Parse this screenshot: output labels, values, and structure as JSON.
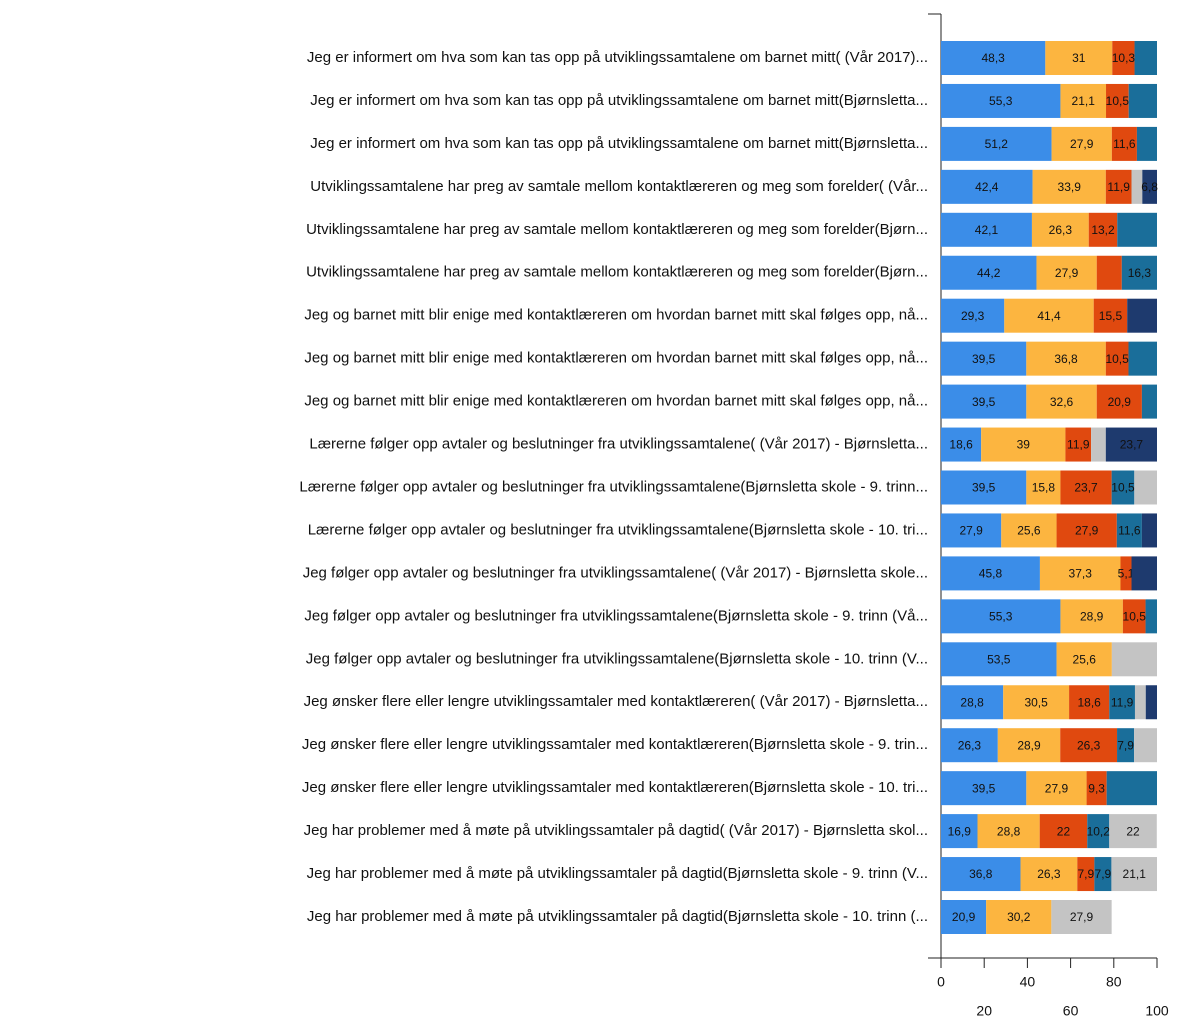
{
  "chart_data": {
    "type": "stacked_barh",
    "categories": [
      "Jeg er informert om hva som kan tas opp på utviklingssamtalene om barnet mitt( (Vår 2017)...",
      "Jeg er informert om hva som kan tas opp på utviklingssamtalene om barnet mitt(Bjørnsletta...",
      "Jeg er informert om hva som kan tas opp på utviklingssamtalene om barnet mitt(Bjørnsletta...",
      "Utviklingssamtalene har preg av samtale mellom kontaktlæreren og meg som forelder( (Vår...",
      "Utviklingssamtalene har preg av samtale mellom kontaktlæreren og meg som forelder(Bjørn...",
      "Utviklingssamtalene har preg av samtale mellom kontaktlæreren og meg som forelder(Bjørn...",
      "Jeg og barnet mitt blir enige med kontaktlæreren om hvordan barnet mitt skal følges opp, nå...",
      "Jeg og barnet mitt blir enige med kontaktlæreren om hvordan barnet mitt skal følges opp, nå...",
      "Jeg og barnet mitt blir enige med kontaktlæreren om hvordan barnet mitt skal følges opp, nå...",
      "Lærerne følger opp avtaler og beslutninger fra utviklingssamtalene( (Vår 2017) - Bjørnsletta...",
      "Lærerne følger opp avtaler og beslutninger fra utviklingssamtalene(Bjørnsletta skole - 9. trinn...",
      "Lærerne følger opp avtaler og beslutninger fra utviklingssamtalene(Bjørnsletta skole - 10. tri...",
      "Jeg følger opp avtaler og beslutninger fra utviklingssamtalene( (Vår 2017) - Bjørnsletta skole...",
      "Jeg følger opp avtaler og beslutninger fra utviklingssamtalene(Bjørnsletta skole - 9. trinn (Vå...",
      "Jeg følger opp avtaler og beslutninger fra utviklingssamtalene(Bjørnsletta skole - 10. trinn (V...",
      "Jeg ønsker flere eller lengre utviklingssamtaler med kontaktlæreren( (Vår 2017) - Bjørnsletta...",
      "Jeg ønsker flere eller lengre utviklingssamtaler med kontaktlæreren(Bjørnsletta skole - 9. trin...",
      "Jeg ønsker flere eller lengre utviklingssamtaler med kontaktlæreren(Bjørnsletta skole - 10. tri...",
      "Jeg har problemer med å møte på utviklingssamtaler på dagtid( (Vår 2017) - Bjørnsletta skol...",
      "Jeg har problemer med å møte på utviklingssamtaler på dagtid(Bjørnsletta skole - 9. trinn (V...",
      "Jeg har problemer med å møte på utviklingssamtaler på dagtid(Bjørnsletta skole - 10. trinn (..."
    ],
    "series": [
      {
        "color": "#3b8de8",
        "values": [
          48.3,
          55.3,
          51.2,
          42.4,
          42.1,
          44.2,
          29.3,
          39.5,
          39.5,
          18.6,
          39.5,
          27.9,
          45.8,
          55.3,
          53.5,
          28.8,
          26.3,
          39.5,
          16.9,
          36.8,
          20.9
        ],
        "value_labels": [
          "48,3",
          "55,3",
          "51,2",
          "42,4",
          "42,1",
          "44,2",
          "29,3",
          "39,5",
          "39,5",
          "18,6",
          "39,5",
          "27,9",
          "45,8",
          "55,3",
          "53,5",
          "28,8",
          "26,3",
          "39,5",
          "16,9",
          "36,8",
          "20,9"
        ]
      },
      {
        "color": "#fcb540",
        "values": [
          31,
          21.1,
          27.9,
          33.9,
          26.3,
          27.9,
          41.4,
          36.8,
          32.6,
          39,
          15.8,
          25.6,
          37.3,
          28.9,
          25.6,
          30.5,
          28.9,
          27.9,
          28.8,
          26.3,
          30.2
        ],
        "value_labels": [
          "31",
          "21,1",
          "27,9",
          "33,9",
          "26,3",
          "27,9",
          "41,4",
          "36,8",
          "32,6",
          "39",
          "15,8",
          "25,6",
          "37,3",
          "28,9",
          "25,6",
          "30,5",
          "28,9",
          "27,9",
          "28,8",
          "26,3",
          "30,2"
        ]
      },
      {
        "color": "#e0490f",
        "values": [
          10.3,
          10.5,
          11.6,
          11.9,
          13.2,
          11.6,
          15.5,
          10.5,
          20.9,
          11.9,
          23.7,
          27.9,
          5.1,
          10.5,
          null,
          18.6,
          26.3,
          9.3,
          22,
          7.9,
          null
        ],
        "value_labels": [
          "10,3",
          "10,5",
          "11,6",
          "11,9",
          "13,2",
          null,
          "15,5",
          "10,5",
          "20,9",
          "11,9",
          "23,7",
          "27,9",
          "5,1",
          "10,5",
          null,
          "18,6",
          "26,3",
          "9,3",
          "22",
          "7,9",
          null
        ]
      },
      {
        "color": "#1a6e9a",
        "values": [
          10.4,
          13.1,
          9.3,
          null,
          18.4,
          16.3,
          null,
          13.2,
          7,
          null,
          10.5,
          11.6,
          null,
          5.3,
          null,
          11.9,
          7.9,
          23.3,
          10.2,
          7.9,
          null
        ],
        "value_labels": [
          null,
          null,
          null,
          null,
          null,
          "16,3",
          null,
          null,
          null,
          null,
          "10,5",
          "11,6",
          null,
          null,
          null,
          "11,9",
          "7,9",
          null,
          "10,2",
          "7,9",
          null
        ]
      },
      {
        "color": "#c4c4c4",
        "values": [
          null,
          null,
          null,
          5,
          null,
          null,
          null,
          null,
          null,
          6.8,
          10.5,
          null,
          null,
          null,
          20.9,
          5,
          10.6,
          null,
          22,
          21.1,
          27.9
        ],
        "value_labels": [
          null,
          null,
          null,
          null,
          null,
          null,
          null,
          null,
          null,
          null,
          null,
          null,
          null,
          null,
          null,
          null,
          null,
          null,
          "22",
          "21,1",
          "27,9"
        ]
      },
      {
        "color": "#1e3a6e",
        "values": [
          null,
          null,
          null,
          6.8,
          null,
          null,
          13.8,
          null,
          null,
          23.7,
          null,
          7,
          11.8,
          null,
          null,
          5.2,
          null,
          null,
          null,
          null,
          null
        ],
        "value_labels": [
          null,
          null,
          null,
          "6,8",
          null,
          null,
          null,
          null,
          null,
          "23,7",
          null,
          null,
          null,
          null,
          null,
          null,
          null,
          null,
          null,
          null,
          null
        ]
      }
    ],
    "xlim": [
      0,
      100
    ],
    "xticks": [
      0,
      20,
      40,
      60,
      80,
      100
    ]
  }
}
